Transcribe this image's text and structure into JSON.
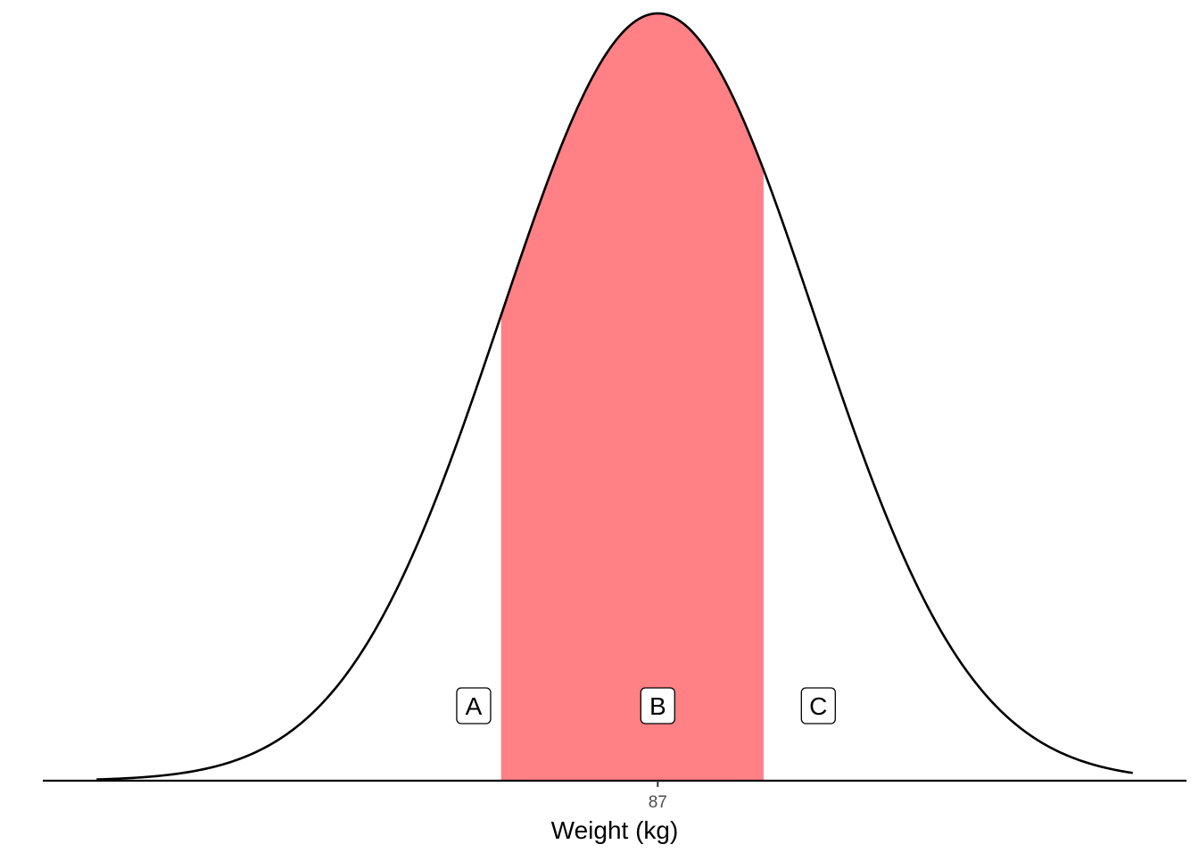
{
  "chart_data": {
    "type": "area",
    "title": "",
    "distribution": "normal",
    "mean": 87,
    "sd": 4,
    "xlim": [
      71.3,
      100.5
    ],
    "ylim": [
      0,
      1.0
    ],
    "xlabel": "Weight (kg)",
    "ylabel": "",
    "x_ticks": [
      87
    ],
    "x_tick_labels": [
      "87"
    ],
    "shaded_region": {
      "from": 83,
      "to": 89.7,
      "color": "#FF8085",
      "label": "B"
    },
    "region_labels": [
      {
        "label": "A",
        "x": 82.3
      },
      {
        "label": "B",
        "x": 87
      },
      {
        "label": "C",
        "x": 91.1
      }
    ],
    "curve_color": "#000000",
    "grid": false,
    "legend": "none"
  }
}
